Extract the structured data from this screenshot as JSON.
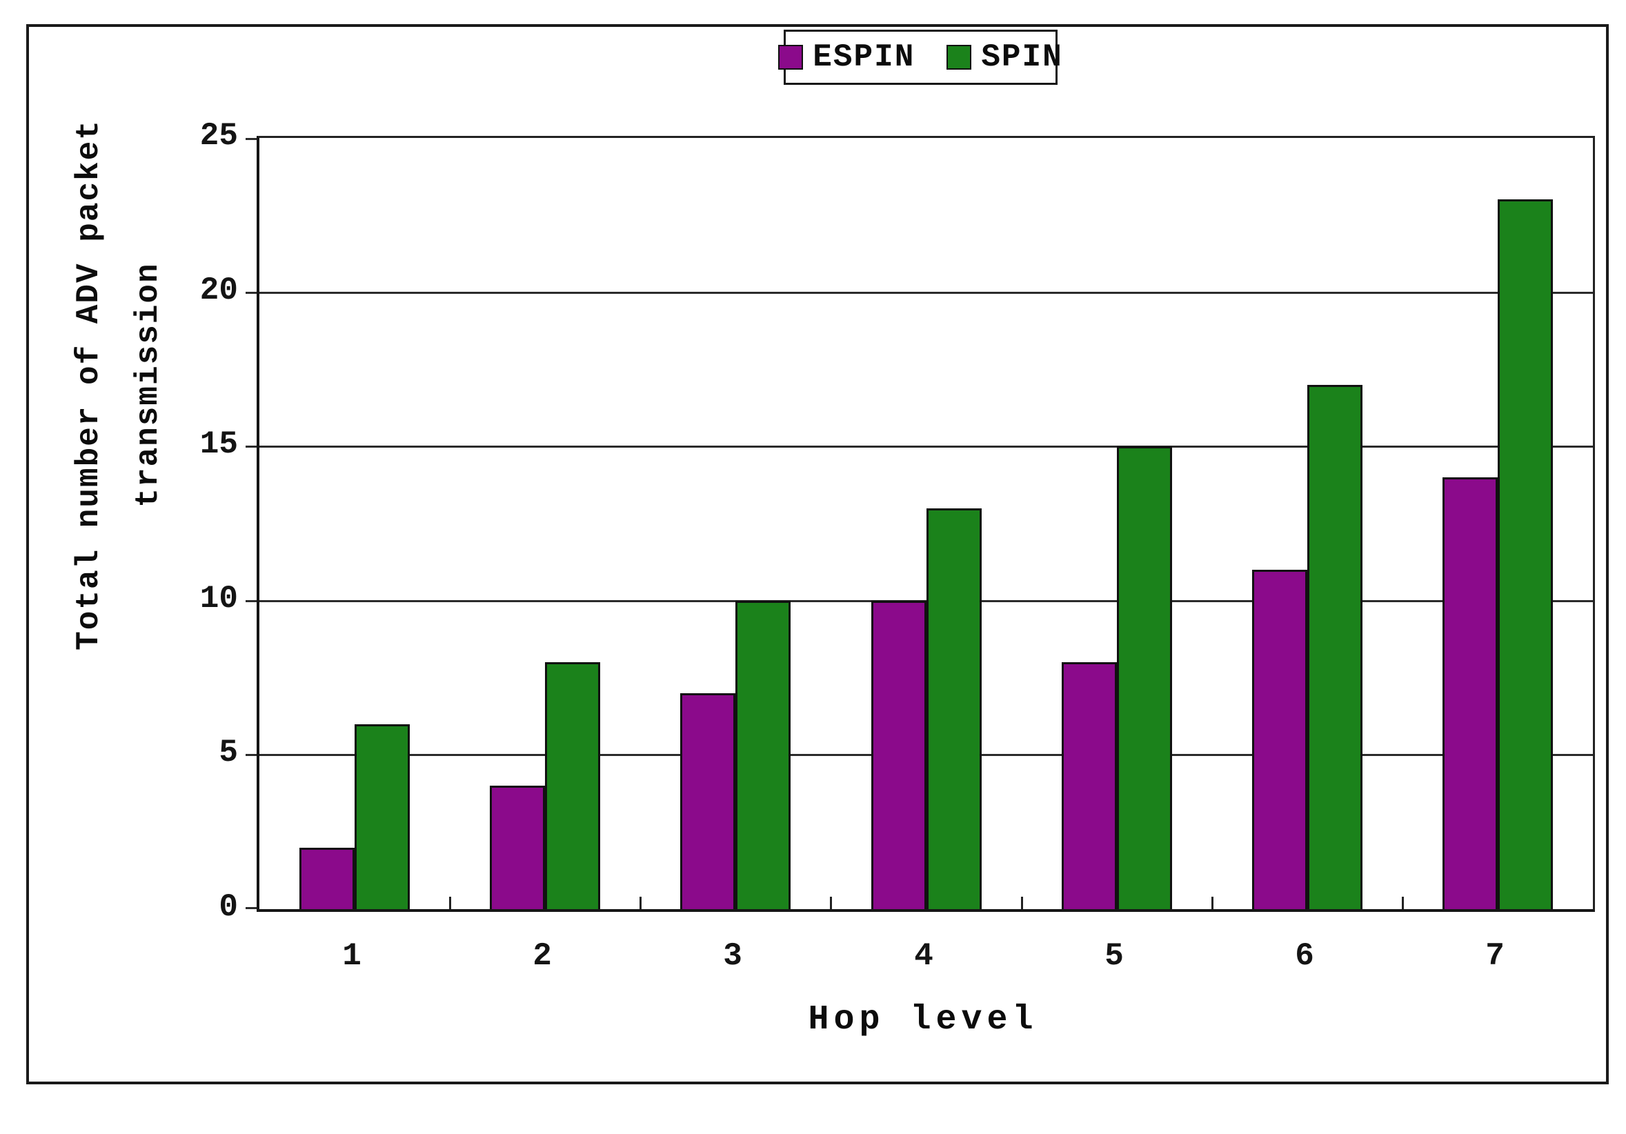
{
  "chart_data": {
    "type": "bar",
    "title": "",
    "categories": [
      "1",
      "2",
      "3",
      "4",
      "5",
      "6",
      "7"
    ],
    "series": [
      {
        "name": "ESPIN",
        "color": "#8B0A8B",
        "values": [
          2,
          4,
          7,
          10,
          8,
          11,
          14
        ]
      },
      {
        "name": "SPIN",
        "color": "#1B821B",
        "values": [
          6,
          8,
          10,
          13,
          15,
          17,
          23
        ]
      }
    ],
    "xlabel": "Hop level",
    "ylabel": "Total number of ADV packet transmission",
    "ylabel_lines": [
      "Total number of ADV packet",
      "transmission"
    ],
    "ylim": [
      0,
      25
    ],
    "ytick_interval": 5,
    "yticks": [
      "0",
      "5",
      "10",
      "15",
      "20",
      "25"
    ],
    "grid": "horizontal",
    "legend_position": "top-center",
    "legend_labels": [
      "ESPIN",
      "SPIN"
    ]
  }
}
